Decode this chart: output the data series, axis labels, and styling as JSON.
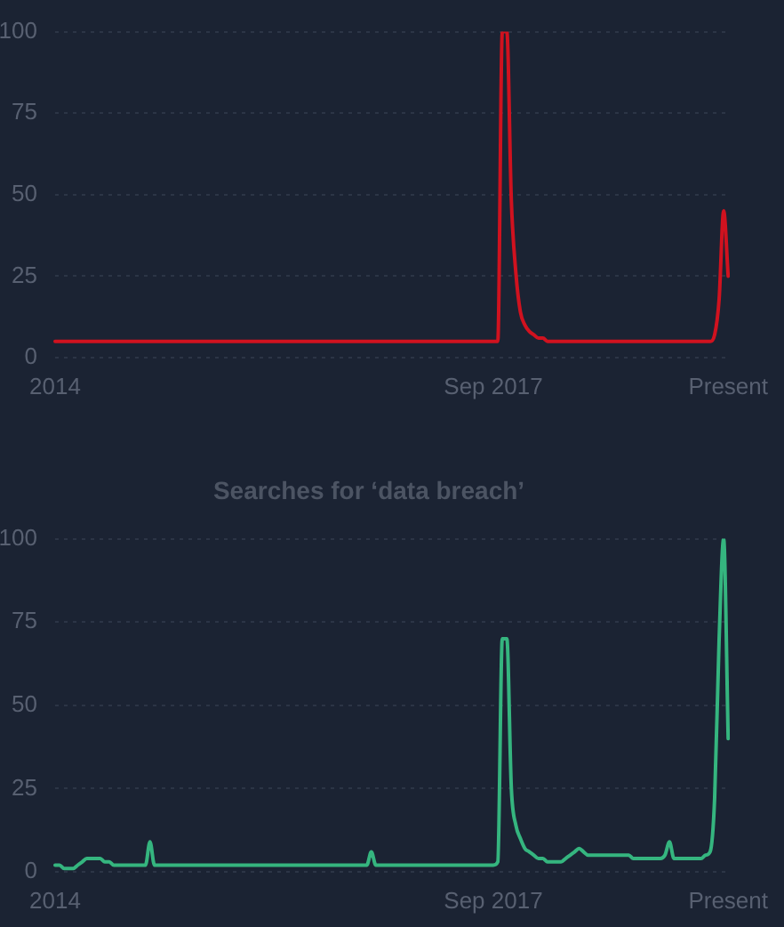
{
  "chart_data": [
    {
      "type": "line",
      "categories": [
        "2014",
        null,
        null,
        null,
        null,
        null,
        null,
        null,
        null,
        null,
        null,
        null,
        null,
        null,
        null,
        null,
        null,
        null,
        null,
        null,
        null,
        null,
        null,
        null,
        null,
        null,
        null,
        null,
        null,
        null,
        null,
        null,
        null,
        null,
        null,
        null,
        null,
        null,
        null,
        null,
        null,
        null,
        null,
        null,
        null,
        null,
        null,
        null,
        null,
        null,
        null,
        null,
        null,
        null,
        null,
        null,
        null,
        null,
        null,
        null,
        null,
        null,
        null,
        null,
        null,
        null,
        null,
        null,
        null,
        null,
        null,
        null,
        null,
        null,
        null,
        null,
        null,
        null,
        null,
        null,
        null,
        null,
        null,
        null,
        null,
        null,
        null,
        null,
        null,
        null,
        null,
        null,
        null,
        null,
        null,
        null,
        null,
        "Sep 2017",
        null,
        null,
        null,
        null,
        null,
        null,
        null,
        null,
        null,
        null,
        null,
        null,
        null,
        null,
        null,
        null,
        null,
        null,
        null,
        null,
        null,
        null,
        null,
        null,
        null,
        null,
        null,
        null,
        null,
        null,
        null,
        null,
        null,
        null,
        null,
        null,
        null,
        null,
        null,
        null,
        null,
        null,
        null,
        null,
        null,
        null,
        null,
        null,
        null,
        null,
        null,
        "Present"
      ],
      "series": [
        {
          "color": "#d0121f",
          "values": [
            5,
            5,
            5,
            5,
            5,
            5,
            5,
            5,
            5,
            5,
            5,
            5,
            5,
            5,
            5,
            5,
            5,
            5,
            5,
            5,
            5,
            5,
            5,
            5,
            5,
            5,
            5,
            5,
            5,
            5,
            5,
            5,
            5,
            5,
            5,
            5,
            5,
            5,
            5,
            5,
            5,
            5,
            5,
            5,
            5,
            5,
            5,
            5,
            5,
            5,
            5,
            5,
            5,
            5,
            5,
            5,
            5,
            5,
            5,
            5,
            5,
            5,
            5,
            5,
            5,
            5,
            5,
            5,
            5,
            5,
            5,
            5,
            5,
            5,
            5,
            5,
            5,
            5,
            5,
            5,
            5,
            5,
            5,
            5,
            5,
            5,
            5,
            5,
            5,
            5,
            5,
            5,
            5,
            5,
            5,
            5,
            5,
            5,
            5,
            100,
            100,
            48,
            26,
            14,
            10,
            8,
            7,
            6,
            6,
            5,
            5,
            5,
            5,
            5,
            5,
            5,
            5,
            5,
            5,
            5,
            5,
            5,
            5,
            5,
            5,
            5,
            5,
            5,
            5,
            5,
            5,
            5,
            5,
            5,
            5,
            5,
            5,
            5,
            5,
            5,
            5,
            5,
            5,
            5,
            5,
            5,
            7,
            18,
            45,
            25
          ]
        }
      ],
      "ylim": [
        0,
        100
      ],
      "yticks": [
        0,
        25,
        50,
        75,
        100
      ],
      "grid": "y"
    },
    {
      "type": "line",
      "title": "Searches for ‘data breach’",
      "categories": [
        "2014",
        null,
        null,
        null,
        null,
        null,
        null,
        null,
        null,
        null,
        null,
        null,
        null,
        null,
        null,
        null,
        null,
        null,
        null,
        null,
        null,
        null,
        null,
        null,
        null,
        null,
        null,
        null,
        null,
        null,
        null,
        null,
        null,
        null,
        null,
        null,
        null,
        null,
        null,
        null,
        null,
        null,
        null,
        null,
        null,
        null,
        null,
        null,
        null,
        null,
        null,
        null,
        null,
        null,
        null,
        null,
        null,
        null,
        null,
        null,
        null,
        null,
        null,
        null,
        null,
        null,
        null,
        null,
        null,
        null,
        null,
        null,
        null,
        null,
        null,
        null,
        null,
        null,
        null,
        null,
        null,
        null,
        null,
        null,
        null,
        null,
        null,
        null,
        null,
        null,
        null,
        null,
        null,
        null,
        null,
        null,
        null,
        "Sep 2017",
        null,
        null,
        null,
        null,
        null,
        null,
        null,
        null,
        null,
        null,
        null,
        null,
        null,
        null,
        null,
        null,
        null,
        null,
        null,
        null,
        null,
        null,
        null,
        null,
        null,
        null,
        null,
        null,
        null,
        null,
        null,
        null,
        null,
        null,
        null,
        null,
        null,
        null,
        null,
        null,
        null,
        null,
        null,
        null,
        null,
        null,
        null,
        null,
        null,
        null,
        null,
        "Present"
      ],
      "series": [
        {
          "color": "#35b57f",
          "values": [
            2,
            2,
            1,
            1,
            1,
            2,
            3,
            4,
            4,
            4,
            4,
            3,
            3,
            2,
            2,
            2,
            2,
            2,
            2,
            2,
            2,
            9,
            2,
            2,
            2,
            2,
            2,
            2,
            2,
            2,
            2,
            2,
            2,
            2,
            2,
            2,
            2,
            2,
            2,
            2,
            2,
            2,
            2,
            2,
            2,
            2,
            2,
            2,
            2,
            2,
            2,
            2,
            2,
            2,
            2,
            2,
            2,
            2,
            2,
            2,
            2,
            2,
            2,
            2,
            2,
            2,
            2,
            2,
            2,
            2,
            6,
            2,
            2,
            2,
            2,
            2,
            2,
            2,
            2,
            2,
            2,
            2,
            2,
            2,
            2,
            2,
            2,
            2,
            2,
            2,
            2,
            2,
            2,
            2,
            2,
            2,
            2,
            2,
            3,
            70,
            70,
            25,
            14,
            10,
            7,
            6,
            5,
            4,
            4,
            3,
            3,
            3,
            3,
            4,
            5,
            6,
            7,
            6,
            5,
            5,
            5,
            5,
            5,
            5,
            5,
            5,
            5,
            5,
            4,
            4,
            4,
            4,
            4,
            4,
            4,
            5,
            9,
            4,
            4,
            4,
            4,
            4,
            4,
            4,
            5,
            6,
            22,
            70,
            100,
            40
          ]
        }
      ],
      "ylim": [
        0,
        100
      ],
      "yticks": [
        0,
        25,
        50,
        75,
        100
      ],
      "grid": "y"
    }
  ]
}
